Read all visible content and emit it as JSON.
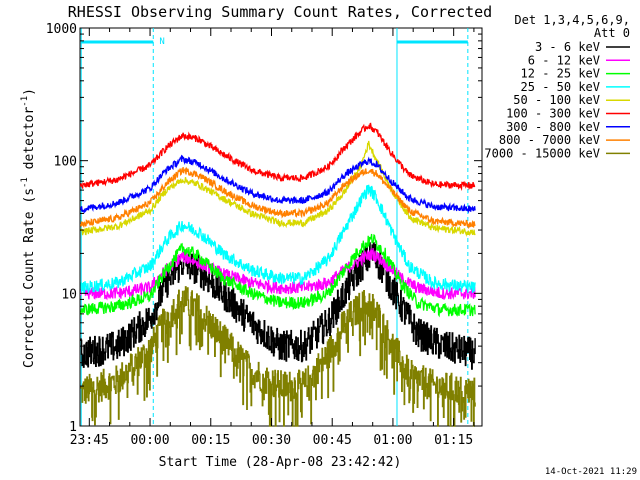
{
  "chart_data": {
    "type": "line",
    "title": "RHESSI Observing Summary Count Rates, Corrected",
    "xlabel": "Start Time (28-Apr-08 23:42:42)",
    "ylabel_main": "Corrected Count Rate (s",
    "ylabel_sup1": "-1",
    "ylabel_mid": " detector",
    "ylabel_sup2": "-1",
    "ylabel_end": ")",
    "y_scale": "log",
    "ylim": [
      1,
      1000
    ],
    "xlim": [
      "23:42:42",
      "01:22:00"
    ],
    "x_ticks": [
      {
        "label": "23:45",
        "t": -15
      },
      {
        "label": "00:00",
        "t": 0
      },
      {
        "label": "00:15",
        "t": 15
      },
      {
        "label": "00:30",
        "t": 30
      },
      {
        "label": "00:45",
        "t": 45
      },
      {
        "label": "01:00",
        "t": 60
      },
      {
        "label": "01:15",
        "t": 75
      }
    ],
    "y_ticks": [
      {
        "label": "1",
        "v": 1
      },
      {
        "label": "10",
        "v": 10
      },
      {
        "label": "100",
        "v": 100
      },
      {
        "label": "1000",
        "v": 1000
      }
    ],
    "legend": {
      "position": "top-right",
      "header": [
        "Det 1,3,4,5,6,9,",
        "Att 0"
      ],
      "entries": [
        {
          "label": "3 - 6 keV",
          "color": "#000000"
        },
        {
          "label": "6 - 12 keV",
          "color": "#ff00ff"
        },
        {
          "label": "12 - 25 keV",
          "color": "#00ff00"
        },
        {
          "label": "25 - 50 keV",
          "color": "#00ffff"
        },
        {
          "label": "50 - 100 keV",
          "color": "#d8d800"
        },
        {
          "label": "100 - 300 keV",
          "color": "#ff0000"
        },
        {
          "label": "300 - 800 keV",
          "color": "#0000ff"
        },
        {
          "label": "800 - 7000 keV",
          "color": "#ff8000"
        },
        {
          "label": "7000 - 15000 keV",
          "color": "#808000"
        }
      ]
    },
    "series": [
      {
        "name": "3 - 6 keV",
        "color": "#000000",
        "points": [
          [
            -17,
            3.5
          ],
          [
            -8,
            4
          ],
          [
            0,
            6.5
          ],
          [
            4,
            12
          ],
          [
            8,
            17
          ],
          [
            12,
            15
          ],
          [
            18,
            10
          ],
          [
            25,
            6
          ],
          [
            32,
            4
          ],
          [
            38,
            4
          ],
          [
            44,
            6
          ],
          [
            48,
            10
          ],
          [
            52,
            16
          ],
          [
            55,
            20
          ],
          [
            58,
            14
          ],
          [
            62,
            8
          ],
          [
            66,
            5
          ],
          [
            72,
            4
          ],
          [
            80,
            3.5
          ]
        ]
      },
      {
        "name": "6 - 12 keV",
        "color": "#ff00ff",
        "points": [
          [
            -17,
            10
          ],
          [
            -8,
            10
          ],
          [
            0,
            11
          ],
          [
            4,
            15
          ],
          [
            8,
            19
          ],
          [
            12,
            17
          ],
          [
            18,
            14
          ],
          [
            25,
            12
          ],
          [
            32,
            11
          ],
          [
            38,
            11
          ],
          [
            44,
            12
          ],
          [
            48,
            15
          ],
          [
            52,
            18
          ],
          [
            55,
            20
          ],
          [
            58,
            17
          ],
          [
            62,
            13
          ],
          [
            66,
            11
          ],
          [
            72,
            10
          ],
          [
            80,
            10
          ]
        ]
      },
      {
        "name": "12 - 25 keV",
        "color": "#00ff00",
        "points": [
          [
            -17,
            7.5
          ],
          [
            -8,
            8
          ],
          [
            0,
            9.5
          ],
          [
            4,
            15
          ],
          [
            8,
            22
          ],
          [
            12,
            19
          ],
          [
            18,
            13
          ],
          [
            25,
            10
          ],
          [
            32,
            8.5
          ],
          [
            38,
            8.5
          ],
          [
            44,
            10
          ],
          [
            48,
            15
          ],
          [
            52,
            22
          ],
          [
            55,
            26
          ],
          [
            58,
            20
          ],
          [
            62,
            12
          ],
          [
            66,
            8.5
          ],
          [
            72,
            7.5
          ],
          [
            80,
            7.5
          ]
        ]
      },
      {
        "name": "25 - 50 keV",
        "color": "#00ffff",
        "points": [
          [
            -17,
            11
          ],
          [
            -8,
            12
          ],
          [
            0,
            16
          ],
          [
            4,
            25
          ],
          [
            8,
            33
          ],
          [
            12,
            29
          ],
          [
            18,
            20
          ],
          [
            25,
            15
          ],
          [
            32,
            13
          ],
          [
            38,
            13
          ],
          [
            44,
            18
          ],
          [
            48,
            30
          ],
          [
            52,
            50
          ],
          [
            54,
            62
          ],
          [
            56,
            52
          ],
          [
            60,
            28
          ],
          [
            64,
            16
          ],
          [
            70,
            12
          ],
          [
            80,
            11
          ]
        ]
      },
      {
        "name": "50 - 100 keV",
        "color": "#d8d800",
        "points": [
          [
            -17,
            29
          ],
          [
            -8,
            32
          ],
          [
            0,
            42
          ],
          [
            4,
            60
          ],
          [
            8,
            72
          ],
          [
            12,
            66
          ],
          [
            18,
            52
          ],
          [
            25,
            40
          ],
          [
            32,
            34
          ],
          [
            38,
            34
          ],
          [
            44,
            42
          ],
          [
            48,
            58
          ],
          [
            52,
            90
          ],
          [
            54,
            135
          ],
          [
            56,
            100
          ],
          [
            60,
            58
          ],
          [
            64,
            38
          ],
          [
            70,
            31
          ],
          [
            80,
            29
          ]
        ]
      },
      {
        "name": "100 - 300 keV",
        "color": "#ff0000",
        "points": [
          [
            -17,
            65
          ],
          [
            -8,
            72
          ],
          [
            0,
            92
          ],
          [
            4,
            125
          ],
          [
            8,
            155
          ],
          [
            12,
            145
          ],
          [
            18,
            112
          ],
          [
            25,
            85
          ],
          [
            32,
            74
          ],
          [
            38,
            74
          ],
          [
            44,
            90
          ],
          [
            48,
            125
          ],
          [
            52,
            165
          ],
          [
            54,
            185
          ],
          [
            56,
            165
          ],
          [
            60,
            110
          ],
          [
            64,
            78
          ],
          [
            70,
            66
          ],
          [
            80,
            65
          ]
        ]
      },
      {
        "name": "300 - 800 keV",
        "color": "#0000ff",
        "points": [
          [
            -17,
            43
          ],
          [
            -8,
            48
          ],
          [
            0,
            62
          ],
          [
            4,
            85
          ],
          [
            8,
            103
          ],
          [
            12,
            95
          ],
          [
            18,
            74
          ],
          [
            25,
            57
          ],
          [
            32,
            50
          ],
          [
            38,
            50
          ],
          [
            44,
            58
          ],
          [
            48,
            78
          ],
          [
            52,
            93
          ],
          [
            54,
            100
          ],
          [
            56,
            93
          ],
          [
            60,
            68
          ],
          [
            64,
            52
          ],
          [
            70,
            45
          ],
          [
            80,
            43
          ]
        ]
      },
      {
        "name": "800 - 7000 keV",
        "color": "#ff8000",
        "points": [
          [
            -17,
            33
          ],
          [
            -8,
            37
          ],
          [
            0,
            48
          ],
          [
            4,
            67
          ],
          [
            8,
            85
          ],
          [
            12,
            78
          ],
          [
            18,
            60
          ],
          [
            25,
            46
          ],
          [
            32,
            40
          ],
          [
            38,
            40
          ],
          [
            44,
            48
          ],
          [
            48,
            66
          ],
          [
            52,
            80
          ],
          [
            54,
            85
          ],
          [
            56,
            80
          ],
          [
            60,
            58
          ],
          [
            64,
            42
          ],
          [
            70,
            35
          ],
          [
            80,
            33
          ]
        ]
      },
      {
        "name": "7000 - 15000 keV",
        "color": "#808000",
        "points": [
          [
            -17,
            1.8
          ],
          [
            -8,
            2.2
          ],
          [
            0,
            3.8
          ],
          [
            4,
            6.5
          ],
          [
            8,
            9
          ],
          [
            12,
            7.5
          ],
          [
            18,
            4.5
          ],
          [
            25,
            2.6
          ],
          [
            32,
            2
          ],
          [
            38,
            2
          ],
          [
            44,
            3.5
          ],
          [
            48,
            6
          ],
          [
            52,
            8
          ],
          [
            54,
            8.5
          ],
          [
            56,
            7
          ],
          [
            60,
            4
          ],
          [
            64,
            2.4
          ],
          [
            70,
            2
          ],
          [
            80,
            1.8
          ]
        ]
      }
    ],
    "markers": {
      "solid_lines_t": [
        -17,
        61
      ],
      "dashed_lines_t": [
        0.8,
        78.5
      ],
      "bars": [
        {
          "from_t": -17,
          "to_t": 0.8
        },
        {
          "from_t": 61,
          "to_t": 78.5
        }
      ],
      "bar_label": "N",
      "bar_label_t": 2.3,
      "color": "#00e5ff"
    },
    "grid": false
  },
  "footer": {
    "timestamp": "14-Oct-2021 11:29"
  }
}
